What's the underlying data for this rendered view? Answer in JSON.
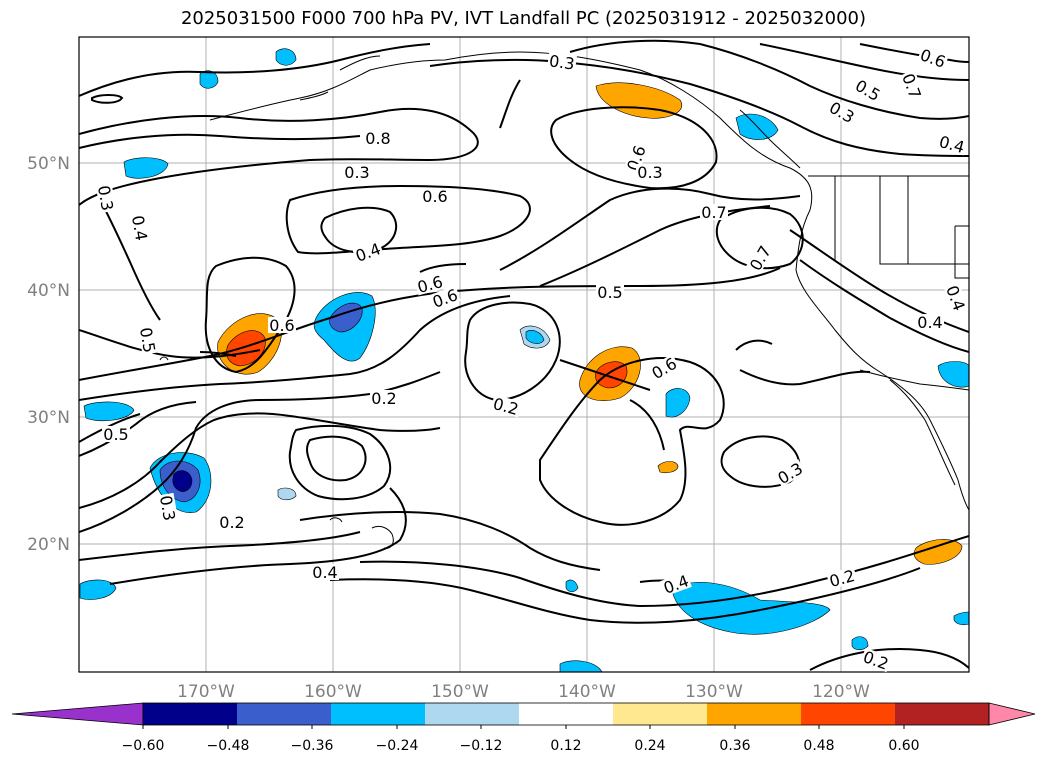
{
  "title": "2025031500 F000 700 hPa PV, IVT Landfall PC (2025031912 - 2025032000)",
  "map": {
    "projection": "PlateCarree",
    "lon_range": [
      -180,
      -110
    ],
    "lat_range": [
      10,
      60
    ],
    "lat_ticks": [
      "50°N",
      "40°N",
      "30°N",
      "20°N"
    ],
    "lon_ticks": [
      "170°W",
      "160°W",
      "150°W",
      "140°W",
      "130°W",
      "120°W"
    ],
    "contour_labels": [
      "0.3",
      "0.6",
      "0.5",
      "0.8",
      "0.7",
      "0.6",
      "0.3",
      "0.4",
      "0.3",
      "0.6",
      "0.4",
      "0.3",
      "0.6",
      "0.7",
      "0.4",
      "0.6",
      "0.7",
      "0.5",
      "0.6",
      "0.4",
      "0.4",
      "0.3",
      "0.2",
      "0.2",
      "0.5",
      "0.6",
      "0.3",
      "0.2",
      "0.3",
      "0.4",
      "0.2",
      "0.4",
      "0.2",
      "0.5"
    ]
  },
  "colorbar": {
    "levels": [
      "−0.60",
      "−0.48",
      "−0.36",
      "−0.24",
      "−0.12",
      "0.12",
      "0.24",
      "0.36",
      "0.48",
      "0.60"
    ],
    "colors": [
      "#9932CC",
      "#00008B",
      "#3A5FCD",
      "#00BFFF",
      "#ADD8F0",
      "#FFFFFF",
      "#FFE890",
      "#FFA500",
      "#FF4500",
      "#B22222",
      "#FF88AA"
    ]
  }
}
